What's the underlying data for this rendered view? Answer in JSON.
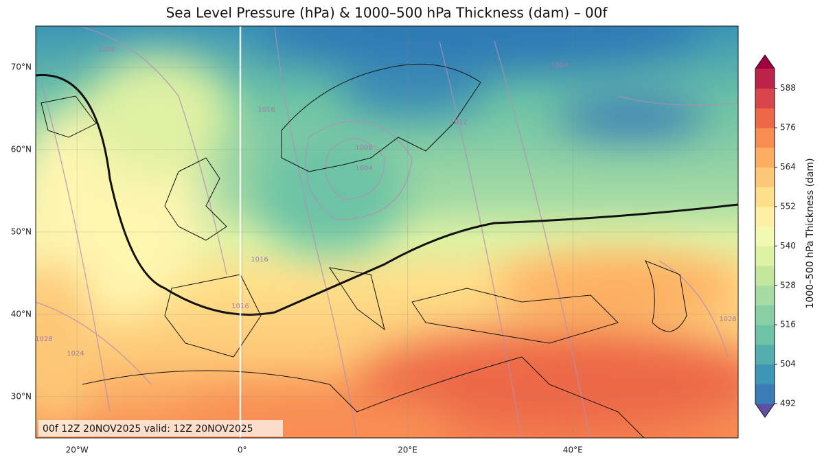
{
  "title": "Sea Level Pressure (hPa) & 1000–500 hPa Thickness (dam) – 00f",
  "map": {
    "xlim": [
      -25,
      60
    ],
    "ylim": [
      25,
      75
    ],
    "xticks": [
      {
        "value": -20,
        "label": "20°W"
      },
      {
        "value": 0,
        "label": "0°"
      },
      {
        "value": 20,
        "label": "20°E"
      },
      {
        "value": 40,
        "label": "40°E"
      }
    ],
    "yticks": [
      {
        "value": 30,
        "label": "30°N"
      },
      {
        "value": 40,
        "label": "40°N"
      },
      {
        "value": 50,
        "label": "50°N"
      },
      {
        "value": 60,
        "label": "60°N"
      },
      {
        "value": 70,
        "label": "70°N"
      }
    ],
    "grid": true,
    "contour_labels": [
      "1008",
      "1004",
      "1016",
      "1012",
      "1008",
      "1004",
      "1016",
      "1016",
      "1028",
      "1024",
      "1028"
    ]
  },
  "info": "00f 12Z 20NOV2025 valid: 12Z 20NOV2025",
  "colorbar": {
    "label": "1000–500 hPa Thickness (dam)",
    "range": [
      492,
      594
    ],
    "ticks": [
      492,
      504,
      516,
      528,
      540,
      552,
      564,
      576,
      588
    ],
    "colors": [
      "#5e4fa2",
      "#3a7cb8",
      "#3c96b5",
      "#54aead",
      "#6cc3a5",
      "#89cfa4",
      "#a6dba4",
      "#c4e79e",
      "#dff1a3",
      "#f2f9b3",
      "#fff0a6",
      "#fee08b",
      "#fdc877",
      "#fdae61",
      "#f88d52",
      "#ed6946",
      "#d9444d",
      "#be2449",
      "#9e0142"
    ]
  }
}
